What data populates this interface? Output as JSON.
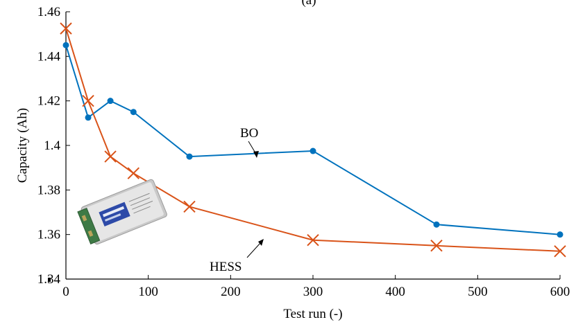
{
  "chart_data": {
    "type": "line",
    "title": "(a)",
    "xlabel": "Test run (-)",
    "ylabel": "Capacity (Ah)",
    "xlim": [
      0,
      600
    ],
    "ylim": [
      1.34,
      1.46
    ],
    "x_ticks": [
      "0",
      "100",
      "200",
      "300",
      "400",
      "500",
      "600"
    ],
    "y_ticks": [
      "1.34",
      "1.36",
      "1.38",
      "1.4",
      "1.42",
      "1.44",
      "1.46"
    ],
    "grid": false,
    "series": [
      {
        "name": "BO",
        "color": "#0072BD",
        "marker": "circle",
        "x": [
          0,
          27,
          54,
          82,
          150,
          300,
          450,
          600
        ],
        "y": [
          1.445,
          1.4125,
          1.42,
          1.415,
          1.395,
          1.3975,
          1.3645,
          1.36
        ]
      },
      {
        "name": "HESS",
        "color": "#D95319",
        "marker": "x",
        "x": [
          0,
          27,
          54,
          82,
          150,
          300,
          450,
          600
        ],
        "y": [
          1.4525,
          1.42,
          1.395,
          1.3875,
          1.3725,
          1.3575,
          1.355,
          1.3525
        ]
      }
    ],
    "annotations": [
      {
        "text": "BO",
        "series": "BO"
      },
      {
        "text": "HESS",
        "series": "HESS"
      }
    ],
    "inset_image": "battery-photo"
  }
}
